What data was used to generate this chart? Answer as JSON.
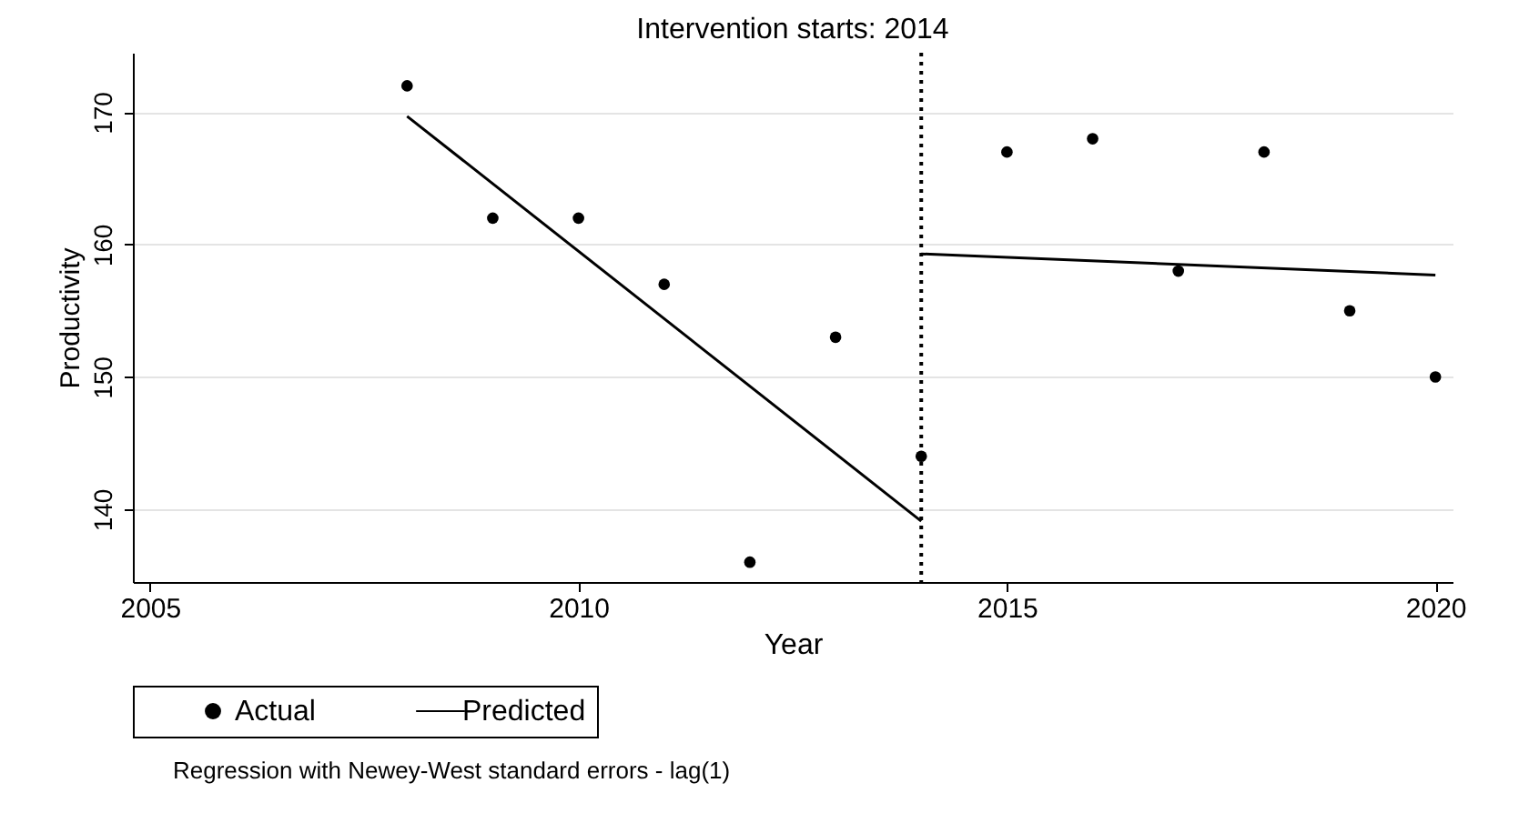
{
  "chart_data": {
    "type": "scatter",
    "title": "Intervention starts: 2014",
    "xlabel": "Year",
    "ylabel": "Productivity",
    "x": [
      2008,
      2009,
      2010,
      2011,
      2012,
      2013,
      2014,
      2015,
      2016,
      2017,
      2018,
      2019,
      2020
    ],
    "series": [
      {
        "name": "Actual",
        "color": "#000000",
        "marker": "circle",
        "values": [
          172,
          162,
          162,
          157,
          136,
          153,
          144,
          167,
          168,
          158,
          167,
          155,
          150
        ]
      },
      {
        "name": "Predicted",
        "type": "line",
        "color": "#000000",
        "marker": "none",
        "line_style": "solid",
        "x": [
          2008,
          2014
        ],
        "values": [
          169.7,
          139.1
        ]
      },
      {
        "type": "line",
        "color": "#000000",
        "marker": "none",
        "line_style": "solid",
        "x": [
          2014,
          2020
        ],
        "values": [
          159.3,
          157.7
        ]
      }
    ],
    "xlim": [
      2004.8,
      2020.2
    ],
    "xticks": [
      2005,
      2010,
      2015,
      2020
    ],
    "ylim": [
      134.5,
      174.5
    ],
    "yticks": [
      140,
      150,
      160,
      170
    ],
    "ref_lines": [
      {
        "axis": "x",
        "value": 2014,
        "color": "#000000",
        "line_style": "dotted"
      }
    ],
    "grid": "y",
    "legend": "bottom",
    "annotations": [
      "Regression with Newey-West standard errors - lag(1)"
    ]
  }
}
